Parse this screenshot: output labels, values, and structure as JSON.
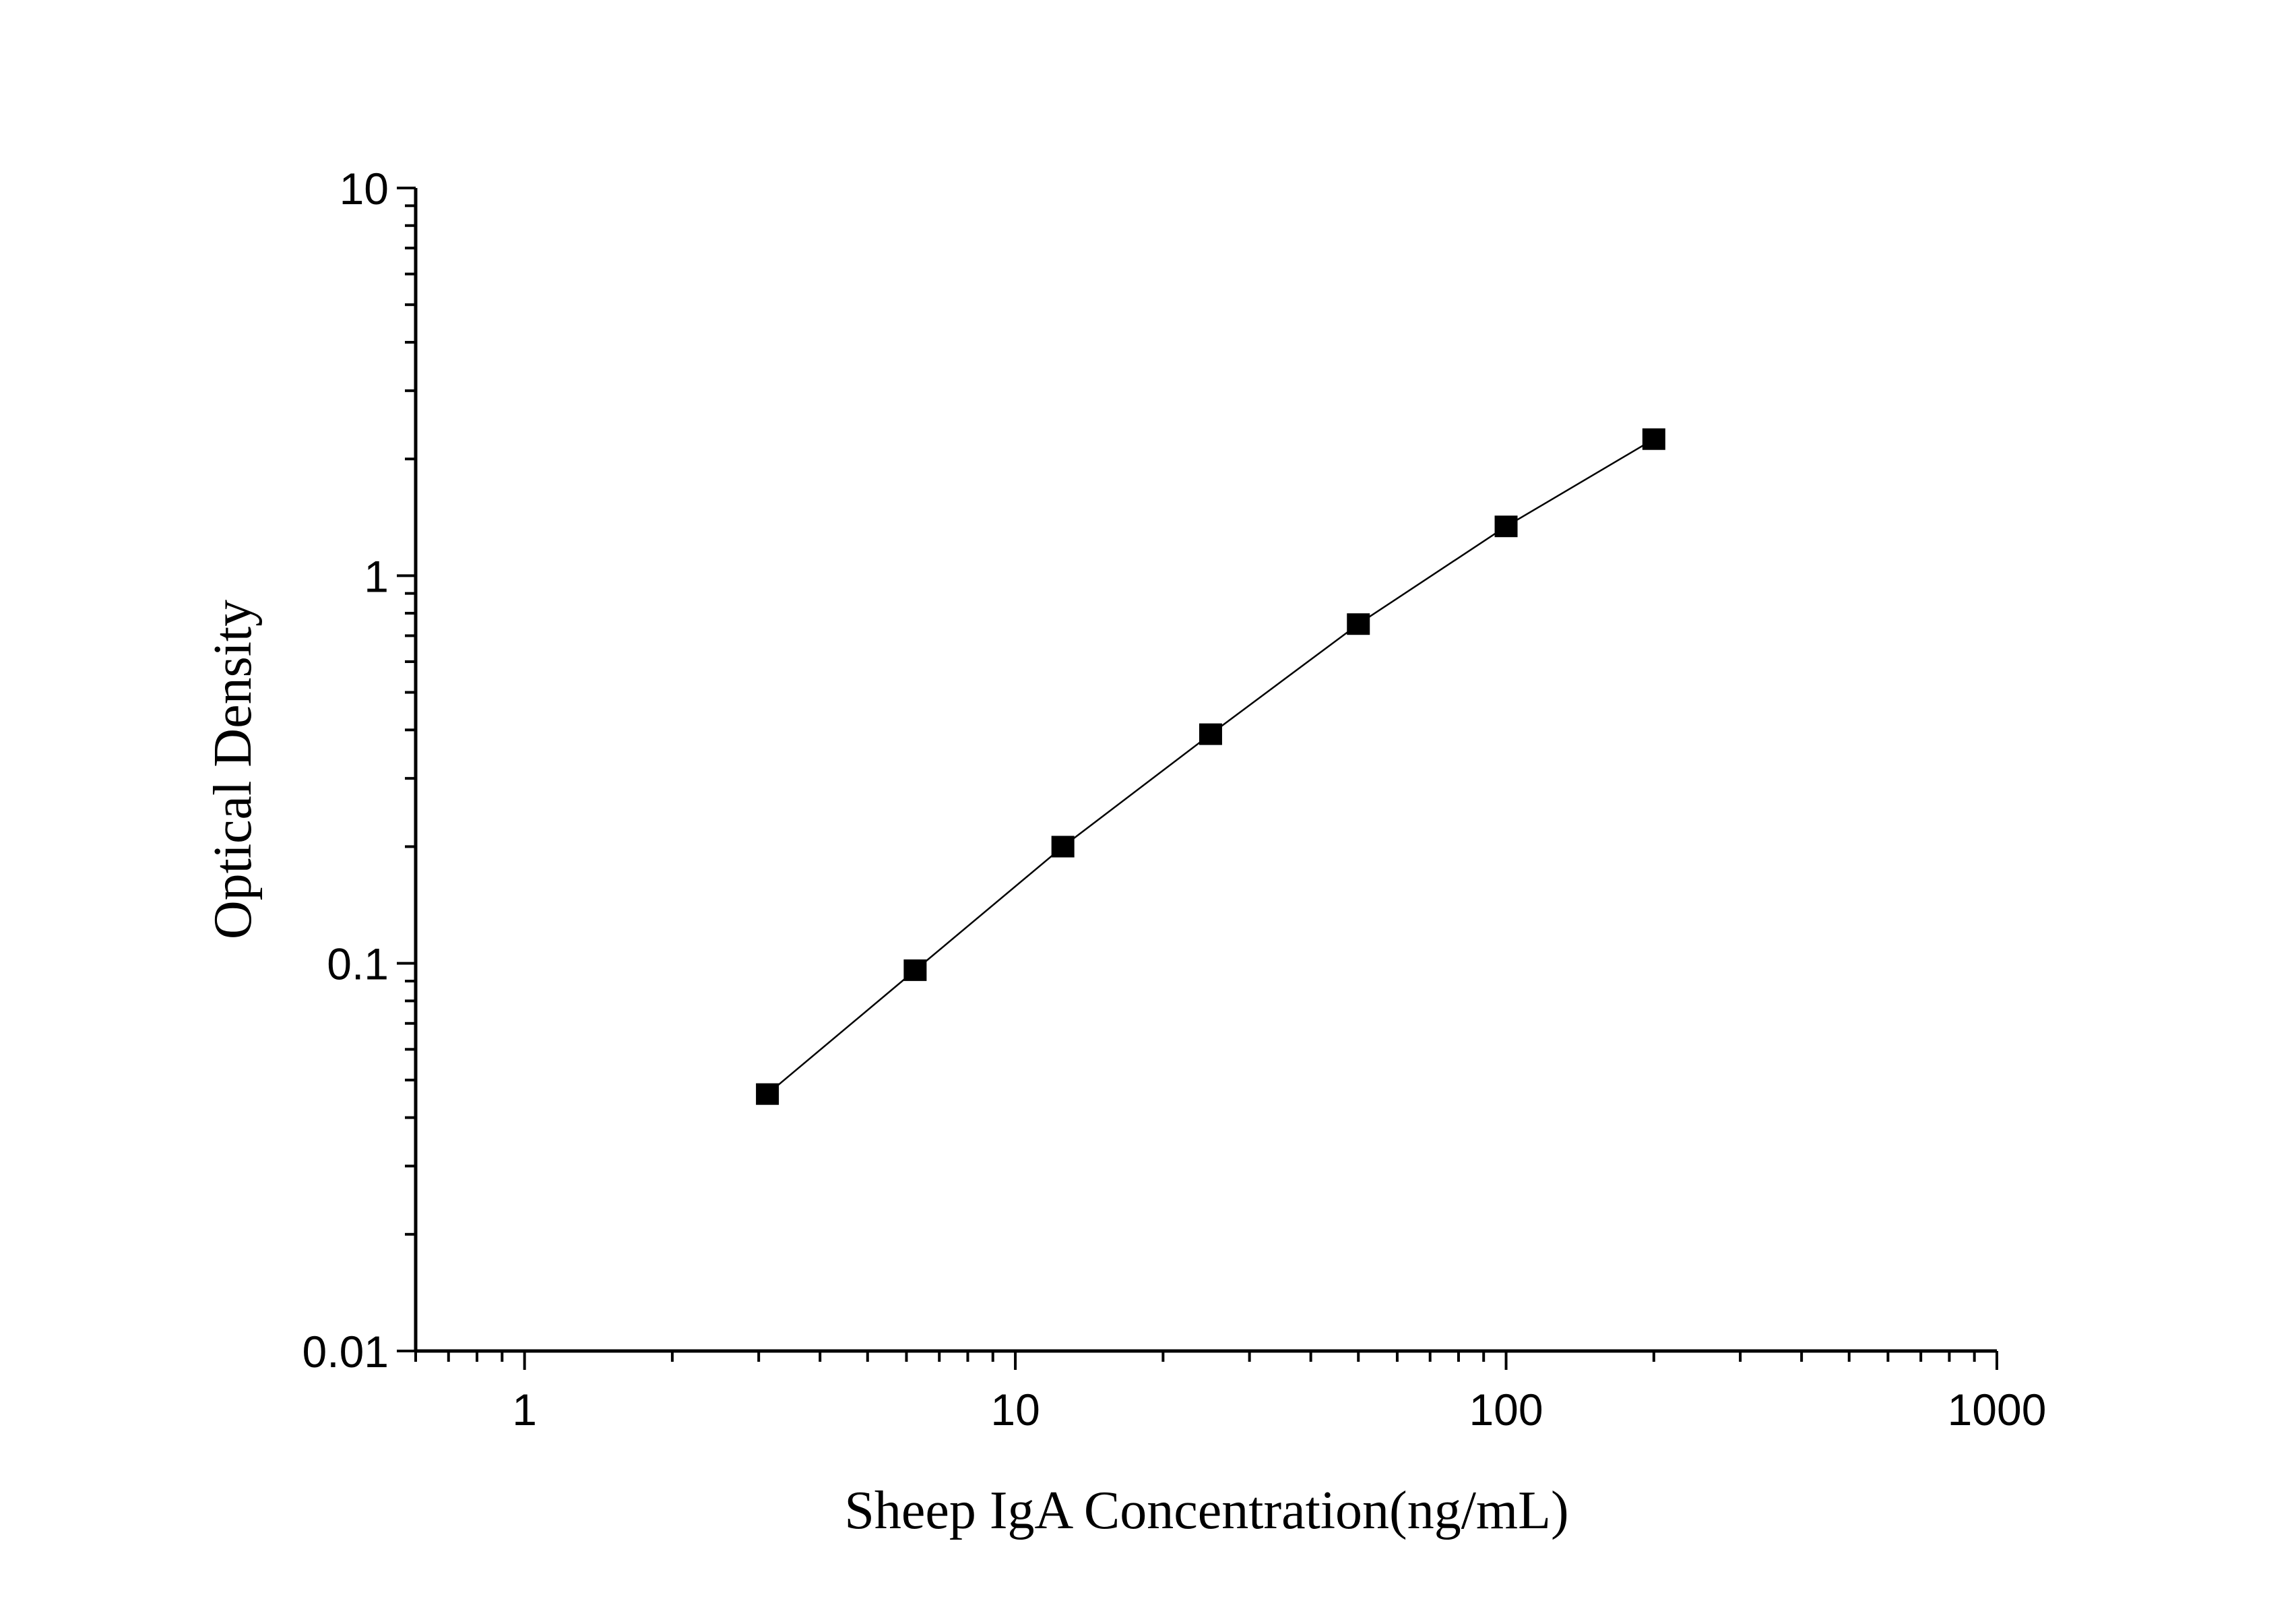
{
  "chart_data": {
    "type": "line",
    "title": "",
    "xlabel": "Sheep IgA Concentration(ng/mL)",
    "ylabel": "Optical Density",
    "x_scale": "log",
    "y_scale": "log",
    "xlim": [
      0.6,
      1000
    ],
    "ylim": [
      0.01,
      10
    ],
    "x_ticks": [
      "1",
      "10",
      "100",
      "1000"
    ],
    "y_ticks": [
      "0.01",
      "0.1",
      "1",
      "10"
    ],
    "grid": false,
    "marker": "square",
    "color": "#000000",
    "series": [
      {
        "x": [
          3.125,
          6.25,
          12.5,
          25,
          50,
          100,
          200
        ],
        "y": [
          0.046,
          0.096,
          0.2,
          0.39,
          0.75,
          1.34,
          2.25
        ]
      }
    ]
  }
}
